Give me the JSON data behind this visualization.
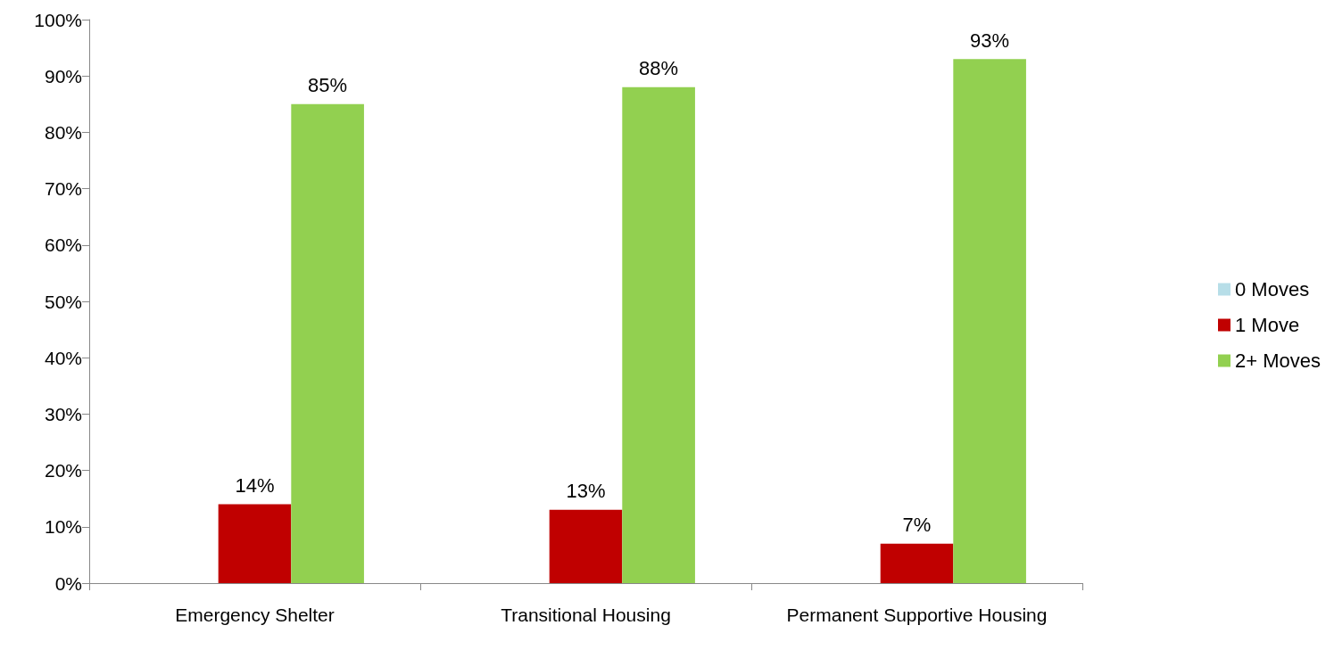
{
  "chart_data": {
    "type": "bar",
    "categories": [
      "Emergency Shelter",
      "Transitional Housing",
      "Permanent Supportive Housing"
    ],
    "series": [
      {
        "name": "0 Moves",
        "color": "#b7dee8",
        "values": [
          0,
          0,
          0
        ],
        "value_labels": [
          null,
          null,
          null
        ]
      },
      {
        "name": "1 Move",
        "color": "#c00000",
        "values": [
          14,
          13,
          7
        ],
        "value_labels": [
          "14%",
          "13%",
          "7%"
        ]
      },
      {
        "name": "2+ Moves",
        "color": "#92d050",
        "values": [
          85,
          88,
          93
        ],
        "value_labels": [
          "85%",
          "88%",
          "93%"
        ]
      }
    ],
    "ylim": [
      0,
      100
    ],
    "yticks": [
      {
        "value": 0,
        "label": "0%"
      },
      {
        "value": 10,
        "label": "10%"
      },
      {
        "value": 20,
        "label": "20%"
      },
      {
        "value": 30,
        "label": "30%"
      },
      {
        "value": 40,
        "label": "40%"
      },
      {
        "value": 50,
        "label": "50%"
      },
      {
        "value": 60,
        "label": "60%"
      },
      {
        "value": 70,
        "label": "70%"
      },
      {
        "value": 80,
        "label": "80%"
      },
      {
        "value": 90,
        "label": "90%"
      },
      {
        "value": 100,
        "label": "100%"
      }
    ],
    "grid": false,
    "legend": "right"
  }
}
